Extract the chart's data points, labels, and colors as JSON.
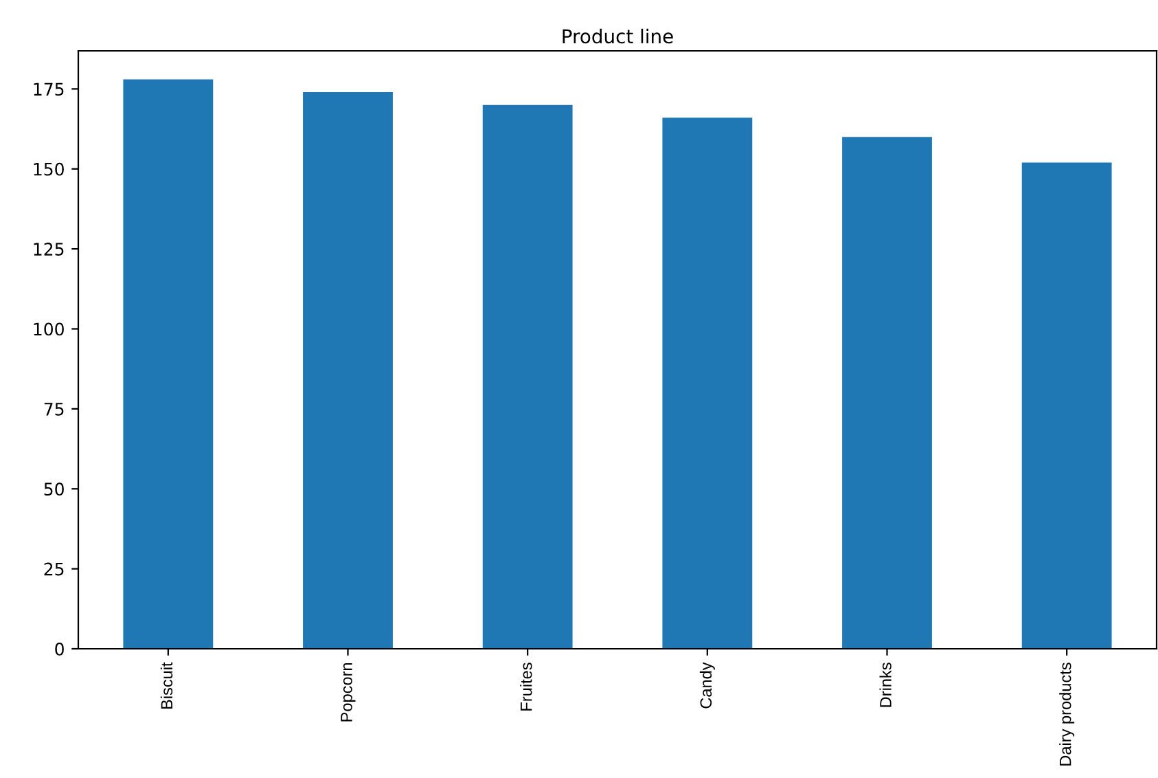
{
  "chart_data": {
    "type": "bar",
    "title": "Product line",
    "categories": [
      "Biscuit",
      "Popcorn",
      "Fruites",
      "Candy",
      "Drinks",
      "Dairy products"
    ],
    "values": [
      178,
      174,
      170,
      166,
      160,
      152
    ],
    "color": "#1f77b4",
    "ylim": [
      0,
      186.9
    ],
    "yticks": [
      0,
      25,
      50,
      75,
      100,
      125,
      150,
      175
    ],
    "grid": false
  }
}
